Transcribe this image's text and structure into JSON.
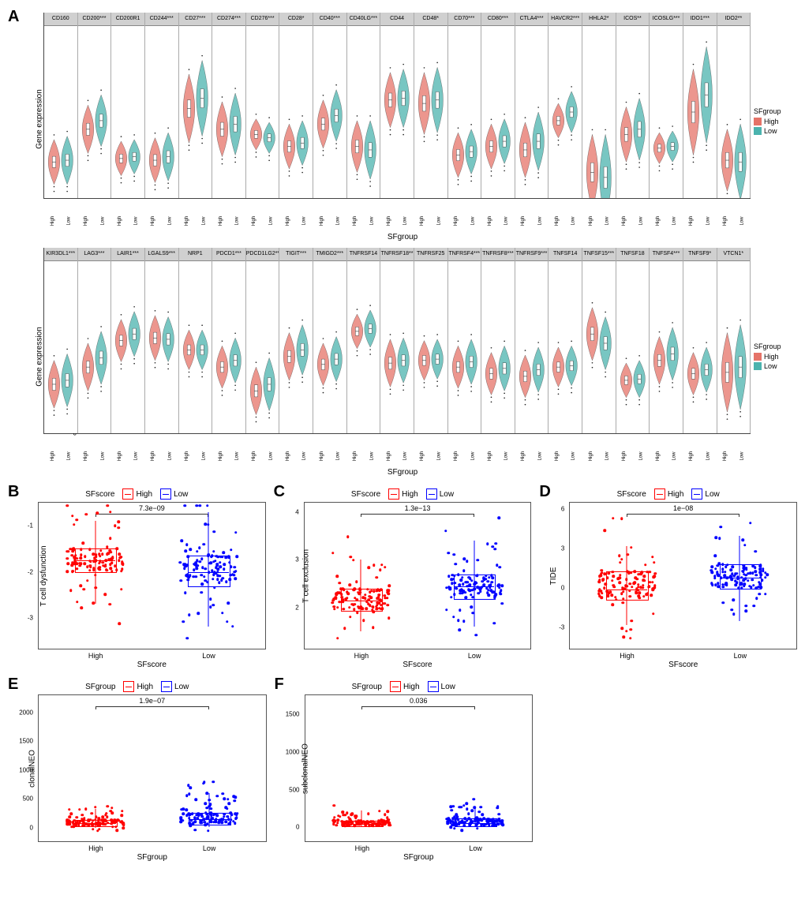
{
  "colors": {
    "high": "#e57368",
    "low": "#4bb3ae",
    "box_high": "#ff0000",
    "box_low": "#0000ff",
    "facet_header_bg": "#d0d0d0",
    "border": "#555555",
    "background": "#ffffff"
  },
  "panelA": {
    "label": "A",
    "y_label": "Gene expression",
    "x_label": "SFgroup",
    "x_categories": [
      "High",
      "Low"
    ],
    "legend_title": "SFgroup",
    "legend_items": [
      "High",
      "Low"
    ],
    "row1": {
      "ylim": [
        2,
        12
      ],
      "yticks": [
        4,
        7,
        10
      ],
      "facets": [
        {
          "gene": "CD160",
          "high_median": 4.1,
          "low_median": 4.2,
          "high_spread": 1.3,
          "low_spread": 1.4
        },
        {
          "gene": "CD200***",
          "high_median": 6.0,
          "low_median": 6.5,
          "high_spread": 1.4,
          "low_spread": 1.5
        },
        {
          "gene": "CD200R1",
          "high_median": 4.3,
          "low_median": 4.4,
          "high_spread": 1.0,
          "low_spread": 1.0
        },
        {
          "gene": "CD244***",
          "high_median": 4.2,
          "low_median": 4.4,
          "high_spread": 1.3,
          "low_spread": 1.4
        },
        {
          "gene": "CD27***",
          "high_median": 7.2,
          "low_median": 7.8,
          "high_spread": 2.0,
          "low_spread": 2.2
        },
        {
          "gene": "CD274***",
          "high_median": 6.0,
          "low_median": 6.3,
          "high_spread": 1.6,
          "low_spread": 1.8
        },
        {
          "gene": "CD276***",
          "high_median": 5.7,
          "low_median": 5.5,
          "high_spread": 0.9,
          "low_spread": 0.9
        },
        {
          "gene": "CD28*",
          "high_median": 5.0,
          "low_median": 5.2,
          "high_spread": 1.3,
          "low_spread": 1.3
        },
        {
          "gene": "CD40***",
          "high_median": 6.3,
          "low_median": 6.8,
          "high_spread": 1.4,
          "low_spread": 1.5
        },
        {
          "gene": "CD40LG***",
          "high_median": 5.0,
          "low_median": 4.8,
          "high_spread": 1.5,
          "low_spread": 1.7
        },
        {
          "gene": "CD44",
          "high_median": 7.7,
          "low_median": 7.8,
          "high_spread": 1.6,
          "low_spread": 1.7
        },
        {
          "gene": "CD48*",
          "high_median": 7.5,
          "low_median": 7.7,
          "high_spread": 1.8,
          "low_spread": 1.9
        },
        {
          "gene": "CD70***",
          "high_median": 4.5,
          "low_median": 4.7,
          "high_spread": 1.3,
          "low_spread": 1.3
        },
        {
          "gene": "CD80***",
          "high_median": 5.0,
          "low_median": 5.3,
          "high_spread": 1.3,
          "low_spread": 1.3
        },
        {
          "gene": "CTLA4***",
          "high_median": 4.8,
          "low_median": 5.3,
          "high_spread": 1.6,
          "low_spread": 1.7
        },
        {
          "gene": "HAVCR2***",
          "high_median": 6.5,
          "low_median": 7.0,
          "high_spread": 1.0,
          "low_spread": 1.2
        },
        {
          "gene": "HHLA2*",
          "high_median": 3.5,
          "low_median": 3.2,
          "high_spread": 2.2,
          "low_spread": 2.5
        },
        {
          "gene": "ICOS**",
          "high_median": 5.7,
          "low_median": 6.0,
          "high_spread": 1.6,
          "low_spread": 1.8
        },
        {
          "gene": "ICOSLG***",
          "high_median": 4.9,
          "low_median": 5.0,
          "high_spread": 0.9,
          "low_spread": 0.9
        },
        {
          "gene": "IDO1***",
          "high_median": 7.0,
          "low_median": 8.0,
          "high_spread": 2.5,
          "low_spread": 2.8
        },
        {
          "gene": "IDO2**",
          "high_median": 4.2,
          "low_median": 4.1,
          "high_spread": 1.8,
          "low_spread": 2.2
        }
      ]
    },
    "row2": {
      "ylim": [
        0,
        13
      ],
      "yticks": [
        0,
        4,
        8,
        12
      ],
      "facets": [
        {
          "gene": "KIR3DL1***",
          "high_median": 3.7,
          "low_median": 4.0,
          "high_spread": 1.8,
          "low_spread": 2.0
        },
        {
          "gene": "LAG3***",
          "high_median": 5.0,
          "low_median": 5.7,
          "high_spread": 1.8,
          "low_spread": 2.0
        },
        {
          "gene": "LAIR1***",
          "high_median": 7.0,
          "low_median": 7.5,
          "high_spread": 1.6,
          "low_spread": 1.7
        },
        {
          "gene": "LGALS9***",
          "high_median": 7.2,
          "low_median": 7.1,
          "high_spread": 1.7,
          "low_spread": 1.7
        },
        {
          "gene": "NRP1",
          "high_median": 6.3,
          "low_median": 6.3,
          "high_spread": 1.5,
          "low_spread": 1.5
        },
        {
          "gene": "PDCD1***",
          "high_median": 5.0,
          "low_median": 5.5,
          "high_spread": 1.6,
          "low_spread": 1.7
        },
        {
          "gene": "PDCD1LG2**",
          "high_median": 3.2,
          "low_median": 3.7,
          "high_spread": 1.8,
          "low_spread": 2.0
        },
        {
          "gene": "TIGIT***",
          "high_median": 5.8,
          "low_median": 6.3,
          "high_spread": 1.8,
          "low_spread": 1.9
        },
        {
          "gene": "TMIGD2***",
          "high_median": 5.2,
          "low_median": 5.6,
          "high_spread": 1.6,
          "low_spread": 1.7
        },
        {
          "gene": "TNFRSF14",
          "high_median": 7.7,
          "low_median": 7.9,
          "high_spread": 1.3,
          "low_spread": 1.4
        },
        {
          "gene": "TNFRSF18**",
          "high_median": 5.3,
          "low_median": 5.5,
          "high_spread": 1.8,
          "low_spread": 1.7
        },
        {
          "gene": "TNFRSF25",
          "high_median": 5.5,
          "low_median": 5.6,
          "high_spread": 1.5,
          "low_spread": 1.5
        },
        {
          "gene": "TNFRSF4***",
          "high_median": 5.0,
          "low_median": 5.4,
          "high_spread": 1.6,
          "low_spread": 1.7
        },
        {
          "gene": "TNFRSF8***",
          "high_median": 4.5,
          "low_median": 4.9,
          "high_spread": 1.6,
          "low_spread": 1.7
        },
        {
          "gene": "TNFRSF9***",
          "high_median": 4.3,
          "low_median": 4.8,
          "high_spread": 1.6,
          "low_spread": 1.7
        },
        {
          "gene": "TNFSF14",
          "high_median": 5.0,
          "low_median": 5.1,
          "high_spread": 1.5,
          "low_spread": 1.5
        },
        {
          "gene": "TNFSF15***",
          "high_median": 7.5,
          "low_median": 6.8,
          "high_spread": 2.0,
          "low_spread": 2.0
        },
        {
          "gene": "TNFSF18",
          "high_median": 4.0,
          "low_median": 4.1,
          "high_spread": 1.3,
          "low_spread": 1.4
        },
        {
          "gene": "TNFSF4***",
          "high_median": 5.5,
          "low_median": 6.0,
          "high_spread": 1.8,
          "low_spread": 2.0
        },
        {
          "gene": "TNFSF9*",
          "high_median": 4.5,
          "low_median": 4.8,
          "high_spread": 1.6,
          "low_spread": 1.7
        },
        {
          "gene": "VTCN1*",
          "high_median": 4.6,
          "low_median": 5.0,
          "high_spread": 3.0,
          "low_spread": 3.2
        }
      ]
    }
  },
  "boxplots": {
    "legend_title": "SFscore",
    "legend_title_ef": "SFgroup",
    "legend_items": [
      "High",
      "Low"
    ],
    "x_categories": [
      "High",
      "Low"
    ],
    "panels": [
      {
        "id": "B",
        "label": "B",
        "y_label": "T cell dysfunction",
        "x_label": "SFscore",
        "pvalue": "7.3e−09",
        "ylim": [
          -3.5,
          -0.5
        ],
        "yticks": [
          -3,
          -2,
          -1
        ],
        "high": {
          "q1": -2.0,
          "median": -1.75,
          "q3": -1.5,
          "wlow": -2.7,
          "whigh": -0.9,
          "n": 120
        },
        "low": {
          "q1": -2.3,
          "median": -2.0,
          "q3": -1.65,
          "wlow": -3.2,
          "whigh": -0.7,
          "n": 120
        }
      },
      {
        "id": "C",
        "label": "C",
        "y_label": "T cell exclusion",
        "x_label": "SFscore",
        "pvalue": "1.3e−13",
        "ylim": [
          1.3,
          4.2
        ],
        "yticks": [
          2,
          3,
          4
        ],
        "high": {
          "q1": 1.95,
          "median": 2.15,
          "q3": 2.4,
          "wlow": 1.5,
          "whigh": 3.0,
          "n": 120
        },
        "low": {
          "q1": 2.2,
          "median": 2.45,
          "q3": 2.7,
          "wlow": 1.6,
          "whigh": 3.4,
          "n": 120
        }
      },
      {
        "id": "D",
        "label": "D",
        "y_label": "TIDE",
        "x_label": "SFscore",
        "pvalue": "1e−08",
        "ylim": [
          -4,
          6.5
        ],
        "yticks": [
          -3,
          0,
          3,
          6
        ],
        "high": {
          "q1": -0.8,
          "median": -0.1,
          "q3": 1.3,
          "wlow": -2.8,
          "whigh": 3.2,
          "n": 120
        },
        "low": {
          "q1": 0.0,
          "median": 0.8,
          "q3": 1.8,
          "wlow": -2.5,
          "whigh": 4.0,
          "n": 120
        }
      },
      {
        "id": "E",
        "label": "E",
        "y_label": "clonalNEO",
        "x_label": "SFgroup",
        "pvalue": "1.9e−07",
        "ylim": [
          -100,
          2300
        ],
        "yticks": [
          0,
          500,
          1000,
          1500,
          2000
        ],
        "high": {
          "q1": 40,
          "median": 80,
          "q3": 140,
          "wlow": 0,
          "whigh": 320,
          "n": 120
        },
        "low": {
          "q1": 60,
          "median": 150,
          "q3": 260,
          "wlow": 5,
          "whigh": 600,
          "n": 120
        }
      },
      {
        "id": "F",
        "label": "F",
        "y_label": "subclonalNEO",
        "x_label": "SFgroup",
        "pvalue": "0.036",
        "ylim": [
          -80,
          1750
        ],
        "yticks": [
          0,
          500,
          1000,
          1500
        ],
        "high": {
          "q1": 20,
          "median": 45,
          "q3": 90,
          "wlow": 0,
          "whigh": 220,
          "n": 120
        },
        "low": {
          "q1": 25,
          "median": 60,
          "q3": 120,
          "wlow": 0,
          "whigh": 280,
          "n": 120
        }
      }
    ]
  }
}
